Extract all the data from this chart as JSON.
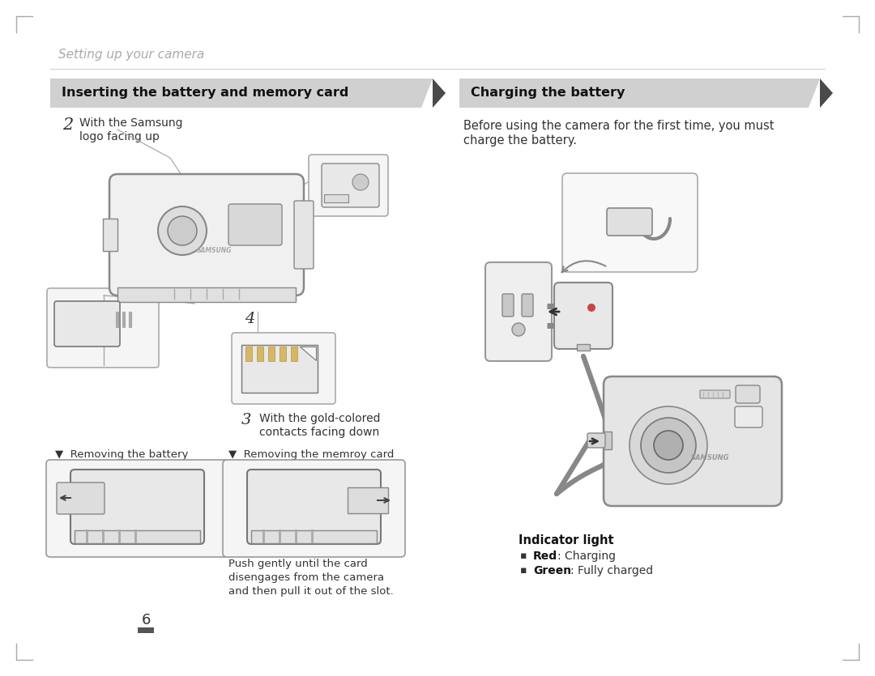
{
  "bg_color": "#ffffff",
  "header_title": "Setting up your camera",
  "header_color": "#aaaaaa",
  "left_banner_title": "Inserting the battery and memory card",
  "right_banner_title": "Charging the battery",
  "banner_bg": "#d0d0d0",
  "banner_arrow": "#4a4a4a",
  "step2_line1": "With the Samsung",
  "step2_line2": "logo facing up",
  "step3_line1": "With the gold-colored",
  "step3_line2": "contacts facing down",
  "remove_battery_label": "▼  Removing the battery",
  "remove_card_label": "▼  Removing the memroy card",
  "push_line1": "Push gently until the card",
  "push_line2": "disengages from the camera",
  "push_line3": "and then pull it out of the slot.",
  "before_line1": "Before using the camera for the first time, you must",
  "before_line2": "charge the battery.",
  "indicator_title": "Indicator light",
  "red_bold": "Red",
  "red_rest": ": Charging",
  "green_bold": "Green",
  "green_rest": ": Fully charged",
  "page_number": "6",
  "body_color": "#333333",
  "img_face": "#eeeeee",
  "img_border": "#999999",
  "cam_face": "#e5e5e5",
  "cam_border": "#777777"
}
